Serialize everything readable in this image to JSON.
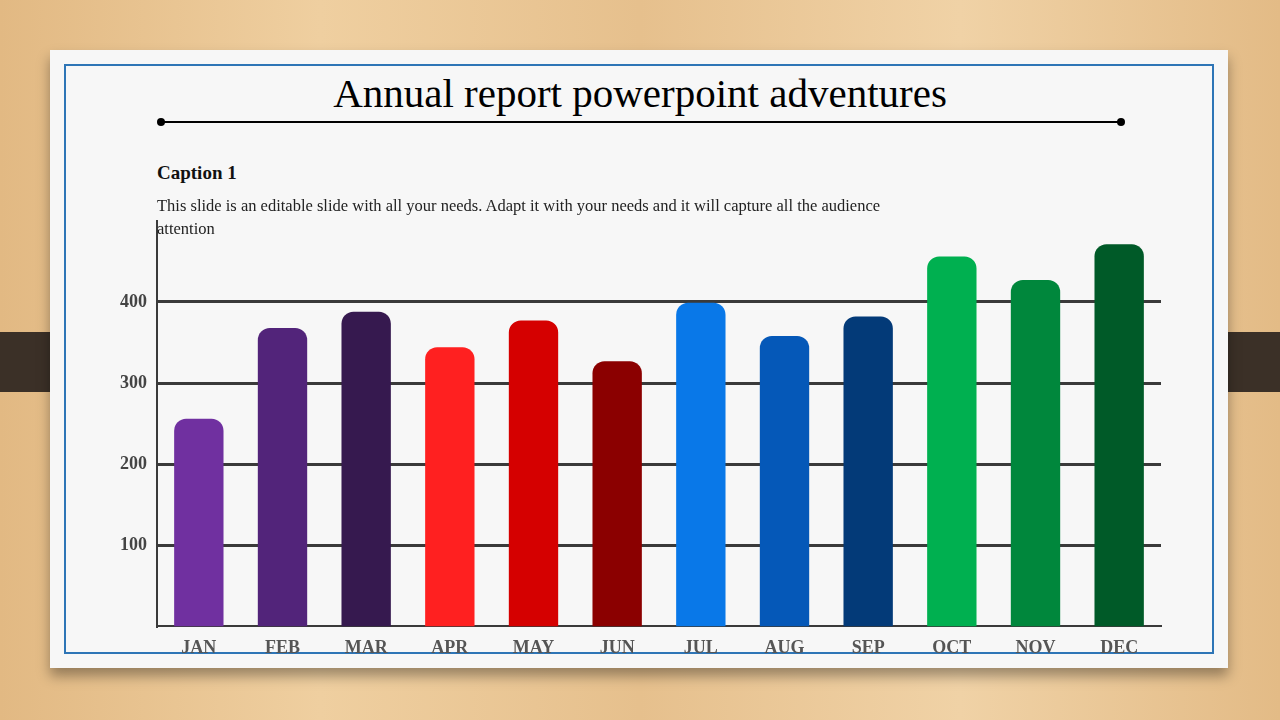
{
  "chart_data": {
    "type": "bar",
    "title": "Annual report powerpoint adventures",
    "subtitle": "Caption 1",
    "annotations": [
      "This slide is an editable slide with all your needs. Adapt it with your needs and it will capture all the audience attention"
    ],
    "categories": [
      "JAN",
      "FEB",
      "MAR",
      "APR",
      "MAY",
      "JUN",
      "JUL",
      "AUG",
      "SEP",
      "OCT",
      "NOV",
      "DEC"
    ],
    "values": [
      256,
      368,
      388,
      344,
      377,
      327,
      399,
      358,
      382,
      456,
      427,
      471
    ],
    "colors": [
      "#7030a0",
      "#52247a",
      "#36194f",
      "#ff2020",
      "#d50000",
      "#8b0000",
      "#0978e8",
      "#0558b8",
      "#033a78",
      "#00b050",
      "#00873c",
      "#005a28"
    ],
    "ylim": [
      0,
      500
    ],
    "yticks": [
      100,
      200,
      300,
      400
    ],
    "grid": true
  }
}
